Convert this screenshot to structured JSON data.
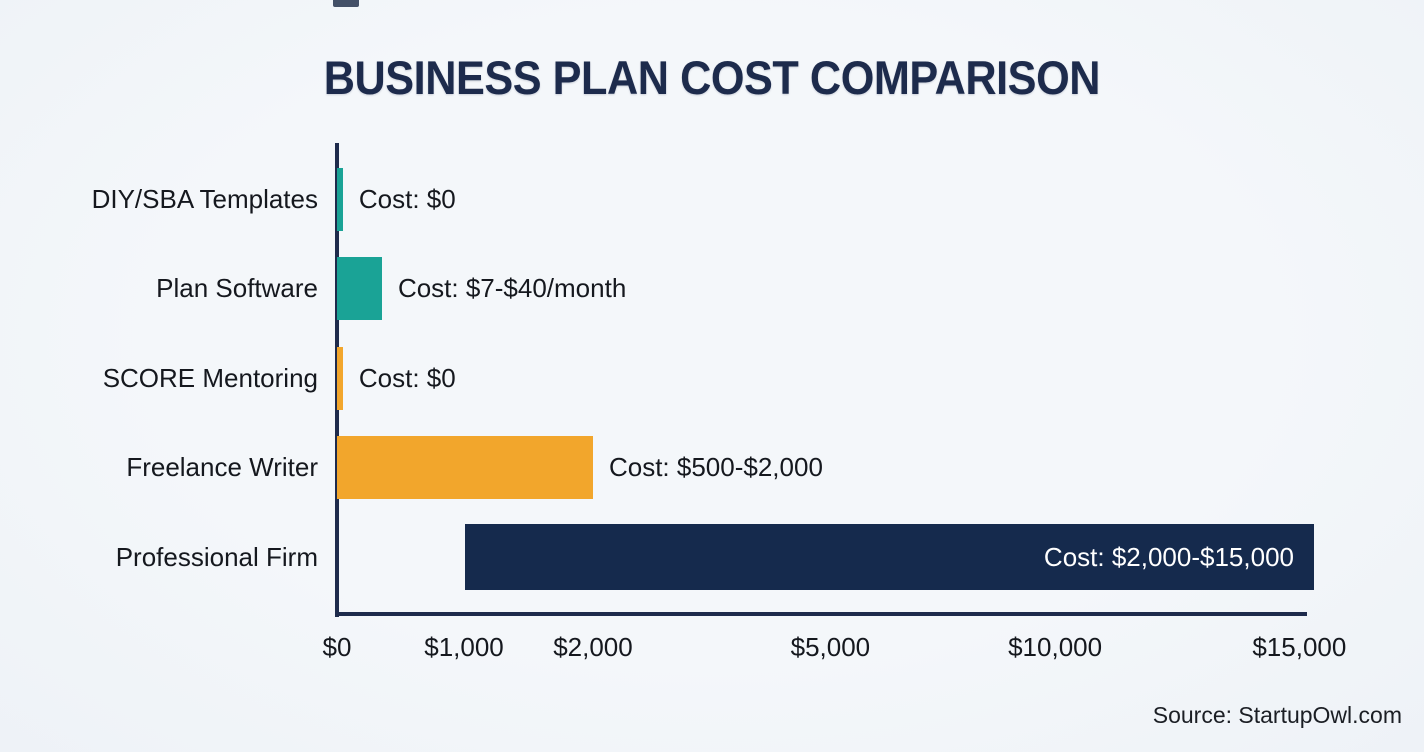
{
  "chart_data": {
    "type": "bar",
    "orientation": "horizontal",
    "title": "BUSINESS PLAN COST COMPARISON",
    "categories": [
      "DIY/SBA Templates",
      "Plan Software",
      "SCORE Mentoring",
      "Freelance Writer",
      "Professional Firm"
    ],
    "bar_labels": [
      "Cost: $0",
      "Cost: $7-$40/month",
      "Cost: $0",
      "Cost: $500-$2,000",
      "Cost: $2,000-$15,000"
    ],
    "values_usd": [
      {
        "min": 0,
        "max": 0
      },
      {
        "min": 7,
        "max": 40,
        "unit": "/month"
      },
      {
        "min": 0,
        "max": 0
      },
      {
        "min": 500,
        "max": 2000
      },
      {
        "min": 2000,
        "max": 15000
      }
    ],
    "x_ticks": [
      "$0",
      "$1,000",
      "$2,000",
      "$5,000",
      "$10,000",
      "$15,000"
    ],
    "x_tick_positions_pct": [
      0,
      13.0,
      26.2,
      50.5,
      73.5,
      98.5
    ],
    "bars_pct": [
      {
        "start": 0,
        "end": 0.6
      },
      {
        "start": 0,
        "end": 4.6
      },
      {
        "start": 0,
        "end": 0.6
      },
      {
        "start": 0,
        "end": 26.2
      },
      {
        "start": 13.1,
        "end": 100
      }
    ],
    "bar_colors": [
      "#1aa396",
      "#1aa396",
      "#f2a62c",
      "#f2a62c",
      "#152a4d"
    ],
    "label_inside": [
      false,
      false,
      false,
      false,
      true
    ],
    "xlim_usd": [
      0,
      15000
    ],
    "axis_scale": "non-linear",
    "grid": "off",
    "legend": "none"
  },
  "footer": {
    "source": "Source: StartupOwl.com"
  },
  "colors": {
    "background": "#f2f5f9",
    "teal": "#1aa396",
    "orange": "#f2a62c",
    "navy": "#152a4d",
    "title": "#1d2b4c",
    "axis": "#1e2b4c",
    "text": "#15181e",
    "bar_label_inside": "#ffffff"
  }
}
